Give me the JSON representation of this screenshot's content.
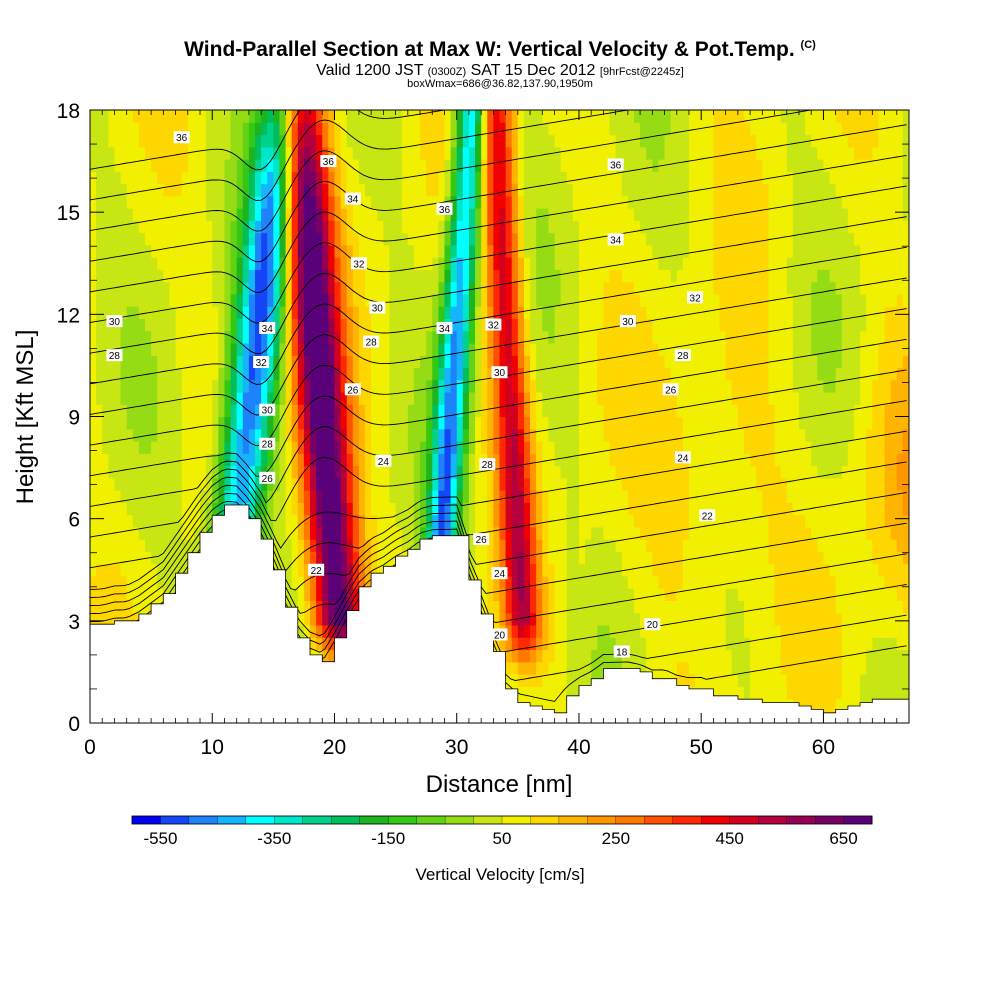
{
  "header": {
    "title": "Wind-Parallel Section at Max W: Vertical Velocity & Pot.Temp.",
    "title_suffix": "(C)",
    "subtitle_a": "Valid 1200 JST",
    "subtitle_b": "(0300Z)",
    "subtitle_c": "SAT 15 Dec 2012",
    "subtitle_d": "[9hrFcst@2245z]",
    "subtitle2": "boxWmax=686@36.82,137.90,1950m"
  },
  "chart_data": {
    "type": "heatmap",
    "xlabel": "Distance [nm]",
    "ylabel": "Height [Kft MSL]",
    "xlim": [
      0,
      67
    ],
    "ylim": [
      0,
      18
    ],
    "xticks": [
      0,
      10,
      20,
      30,
      40,
      50,
      60
    ],
    "yticks": [
      0,
      3,
      6,
      9,
      12,
      15,
      18
    ],
    "colorbar": {
      "title": "Vertical Velocity [cm/s]",
      "tick_labels": [
        "-550",
        "-350",
        "-150",
        "50",
        "250",
        "450",
        "650"
      ],
      "tick_values": [
        -550,
        -350,
        -150,
        50,
        250,
        450,
        650
      ],
      "min": -600,
      "max": 700,
      "colors": [
        "#0000f0",
        "#1446f5",
        "#1e82fa",
        "#14b4ff",
        "#00ffff",
        "#00e6c8",
        "#00d28c",
        "#00be5a",
        "#1eb41e",
        "#32c814",
        "#64d214",
        "#96dc14",
        "#c8e614",
        "#f0f000",
        "#ffd700",
        "#ffb400",
        "#ff9600",
        "#ff7800",
        "#ff5000",
        "#ff2800",
        "#f00000",
        "#d2001e",
        "#b4003c",
        "#960050",
        "#780064",
        "#5a0078"
      ]
    },
    "velocity_features": [
      {
        "x": 13,
        "width": 2.0,
        "z_min": 5,
        "z_max": 18,
        "amplitude": -560,
        "tilt": 0.32
      },
      {
        "x": 19,
        "width": 2.0,
        "z_min": 3,
        "z_max": 18,
        "amplitude": 690,
        "tilt": -0.22
      },
      {
        "x": 29.5,
        "width": 1.3,
        "z_min": 4,
        "z_max": 18,
        "amplitude": -520,
        "tilt": 0.2
      },
      {
        "x": 34.5,
        "width": 1.4,
        "z_min": 3,
        "z_max": 18,
        "amplitude": 420,
        "tilt": -0.15
      }
    ],
    "terrain_x": [
      0,
      1,
      2,
      3,
      4,
      5,
      6,
      7,
      8,
      9,
      10,
      11,
      12,
      13,
      14,
      15,
      16,
      17,
      18,
      19,
      20,
      21,
      22,
      23,
      24,
      25,
      26,
      27,
      28,
      29,
      30,
      31,
      32,
      33,
      34,
      35,
      36,
      37,
      38,
      39,
      40,
      41,
      42,
      43,
      44,
      45,
      46,
      47,
      48,
      49,
      50,
      51,
      52,
      53,
      54,
      55,
      56,
      57,
      58,
      59,
      60,
      61,
      62,
      63,
      64,
      65,
      66,
      67
    ],
    "terrain_height_kft": [
      2.9,
      2.9,
      3.0,
      3.0,
      3.2,
      3.5,
      3.8,
      4.4,
      5.0,
      5.6,
      6.1,
      6.4,
      6.4,
      6.0,
      5.4,
      4.5,
      3.4,
      2.5,
      2.0,
      1.8,
      2.5,
      3.3,
      4.0,
      4.4,
      4.6,
      4.9,
      5.1,
      5.4,
      5.5,
      5.5,
      5.5,
      4.2,
      3.2,
      2.1,
      1.0,
      0.6,
      0.5,
      0.4,
      0.3,
      0.8,
      1.1,
      1.3,
      1.6,
      1.6,
      1.6,
      1.5,
      1.3,
      1.3,
      1.1,
      1.0,
      1.0,
      0.8,
      0.8,
      0.7,
      0.7,
      0.6,
      0.6,
      0.6,
      0.5,
      0.4,
      0.3,
      0.4,
      0.5,
      0.6,
      0.7,
      0.7,
      0.7,
      0.7
    ],
    "theta_levels_C": [
      17,
      18,
      19,
      20,
      21,
      22,
      23,
      24,
      25,
      26,
      27,
      28,
      29,
      30,
      31,
      32,
      33,
      34,
      35,
      36,
      37
    ],
    "theta_labels": [
      {
        "text": "36",
        "x": 7.5,
        "y": 17.2
      },
      {
        "text": "30",
        "x": 2,
        "y": 11.8
      },
      {
        "text": "28",
        "x": 2,
        "y": 10.8
      },
      {
        "text": "36",
        "x": 19.5,
        "y": 16.5
      },
      {
        "text": "34",
        "x": 21.5,
        "y": 15.4
      },
      {
        "text": "32",
        "x": 22,
        "y": 13.5
      },
      {
        "text": "30",
        "x": 23.5,
        "y": 12.2
      },
      {
        "text": "28",
        "x": 23,
        "y": 11.2
      },
      {
        "text": "26",
        "x": 21.5,
        "y": 9.8
      },
      {
        "text": "24",
        "x": 24,
        "y": 7.7
      },
      {
        "text": "34",
        "x": 14.5,
        "y": 11.6
      },
      {
        "text": "32",
        "x": 14,
        "y": 10.6
      },
      {
        "text": "30",
        "x": 14.5,
        "y": 9.2
      },
      {
        "text": "28",
        "x": 14.5,
        "y": 8.2
      },
      {
        "text": "26",
        "x": 14.5,
        "y": 7.2
      },
      {
        "text": "22",
        "x": 18.5,
        "y": 4.5
      },
      {
        "text": "36",
        "x": 29,
        "y": 15.1
      },
      {
        "text": "34",
        "x": 29,
        "y": 11.6
      },
      {
        "text": "32",
        "x": 33,
        "y": 11.7
      },
      {
        "text": "30",
        "x": 33.5,
        "y": 10.3
      },
      {
        "text": "28",
        "x": 32.5,
        "y": 7.6
      },
      {
        "text": "26",
        "x": 32,
        "y": 5.4
      },
      {
        "text": "24",
        "x": 33.5,
        "y": 4.4
      },
      {
        "text": "20",
        "x": 33.5,
        "y": 2.6
      },
      {
        "text": "36",
        "x": 43,
        "y": 16.4
      },
      {
        "text": "34",
        "x": 43,
        "y": 14.2
      },
      {
        "text": "32",
        "x": 49.5,
        "y": 12.5
      },
      {
        "text": "30",
        "x": 44,
        "y": 11.8
      },
      {
        "text": "28",
        "x": 48.5,
        "y": 10.8
      },
      {
        "text": "26",
        "x": 47.5,
        "y": 9.8
      },
      {
        "text": "24",
        "x": 48.5,
        "y": 7.8
      },
      {
        "text": "22",
        "x": 50.5,
        "y": 6.1
      },
      {
        "text": "20",
        "x": 46,
        "y": 2.9
      },
      {
        "text": "18",
        "x": 43.5,
        "y": 2.1
      }
    ]
  }
}
